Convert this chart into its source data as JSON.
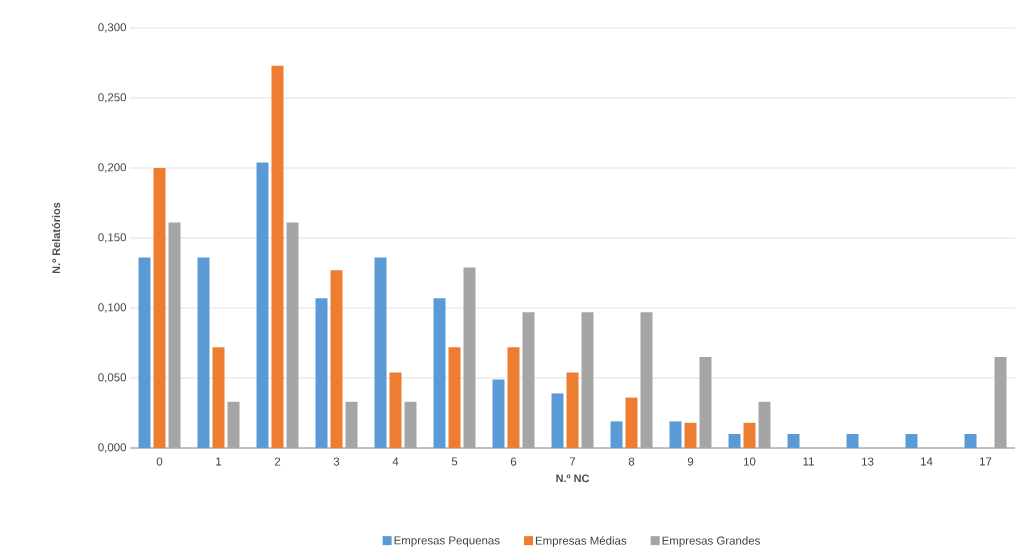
{
  "chart_data": {
    "type": "bar",
    "xlabel": "N.º NC",
    "ylabel": "N.º Relatórios",
    "categories": [
      "0",
      "1",
      "2",
      "3",
      "4",
      "5",
      "6",
      "7",
      "8",
      "9",
      "10",
      "11",
      "13",
      "14",
      "17"
    ],
    "series": [
      {
        "name": "Empresas Pequenas",
        "color": "#5b9bd5",
        "values": [
          0.136,
          0.136,
          0.204,
          0.107,
          0.136,
          0.107,
          0.049,
          0.039,
          0.019,
          0.019,
          0.01,
          0.01,
          0.01,
          0.01,
          0.01
        ]
      },
      {
        "name": "Empresas Médias",
        "color": "#ed7d31",
        "values": [
          0.2,
          0.072,
          0.273,
          0.127,
          0.054,
          0.072,
          0.072,
          0.054,
          0.036,
          0.018,
          0.018,
          0,
          0,
          0,
          0
        ]
      },
      {
        "name": "Empresas Grandes",
        "color": "#a5a5a5",
        "values": [
          0.161,
          0.033,
          0.161,
          0.033,
          0.033,
          0.129,
          0.097,
          0.097,
          0.097,
          0.065,
          0.033,
          0,
          0,
          0,
          0.065
        ]
      }
    ],
    "ylim": [
      0,
      0.3
    ],
    "yticks": [
      {
        "value": 0,
        "label": "0,000"
      },
      {
        "value": 0.05,
        "label": "0,050"
      },
      {
        "value": 0.1,
        "label": "0,100"
      },
      {
        "value": 0.15,
        "label": "0,150"
      },
      {
        "value": 0.2,
        "label": "0,200"
      },
      {
        "value": 0.25,
        "label": "0,250"
      },
      {
        "value": 0.3,
        "label": "0,300"
      }
    ],
    "grid": "y",
    "legend": "bottom"
  }
}
